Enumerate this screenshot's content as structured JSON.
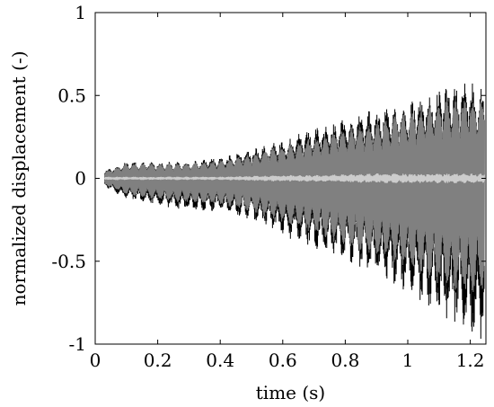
{
  "chart_data": {
    "type": "line",
    "title": "",
    "xlabel": "time (s)",
    "ylabel": "normalized displacement (-)",
    "xlim": [
      0,
      1.25
    ],
    "ylim": [
      -1,
      1
    ],
    "grid": false,
    "legend": "none",
    "x_ticks": [
      {
        "value": 0,
        "label": "0"
      },
      {
        "value": 0.2,
        "label": "0.2"
      },
      {
        "value": 0.4,
        "label": "0.4"
      },
      {
        "value": 0.6,
        "label": "0.6"
      },
      {
        "value": 0.8,
        "label": "0.8"
      },
      {
        "value": 1,
        "label": "1"
      },
      {
        "value": 1.2,
        "label": "1.2"
      }
    ],
    "y_ticks": [
      {
        "value": -1,
        "label": "-1"
      },
      {
        "value": -0.5,
        "label": "-0.5"
      },
      {
        "value": 0,
        "label": "0"
      },
      {
        "value": 0.5,
        "label": "0.5"
      },
      {
        "value": 1,
        "label": "1"
      }
    ],
    "series_colors": {
      "black_envelope": "#000000",
      "dark_gray_band": "#808080",
      "light_gray_band": "#cccccc"
    },
    "envelope_samples": {
      "x": [
        0.03,
        0.1,
        0.2,
        0.3,
        0.4,
        0.5,
        0.6,
        0.7,
        0.8,
        0.9,
        1.0,
        1.1,
        1.2,
        1.245
      ],
      "black_upper": [
        0.05,
        0.1,
        0.1,
        0.1,
        0.13,
        0.18,
        0.24,
        0.3,
        0.37,
        0.42,
        0.46,
        0.55,
        0.6,
        0.55
      ],
      "black_lower": [
        -0.05,
        -0.13,
        -0.17,
        -0.2,
        -0.2,
        -0.25,
        -0.35,
        -0.42,
        -0.5,
        -0.6,
        -0.7,
        -0.82,
        -0.95,
        -1.0
      ],
      "gray_upper": [
        0.04,
        0.09,
        0.09,
        0.09,
        0.11,
        0.15,
        0.2,
        0.25,
        0.3,
        0.35,
        0.4,
        0.47,
        0.5,
        0.48
      ],
      "gray_lower": [
        -0.04,
        -0.1,
        -0.13,
        -0.15,
        -0.16,
        -0.2,
        -0.27,
        -0.33,
        -0.42,
        -0.48,
        -0.55,
        -0.65,
        -0.72,
        -0.7
      ],
      "light_upper": [
        0.01,
        0.01,
        0.01,
        0.01,
        0.01,
        0.015,
        0.02,
        0.02,
        0.025,
        0.03,
        0.03,
        0.03,
        0.03,
        0.03
      ],
      "light_lower": [
        -0.01,
        -0.01,
        -0.01,
        -0.01,
        -0.01,
        -0.015,
        -0.02,
        -0.02,
        -0.025,
        -0.03,
        -0.03,
        -0.03,
        -0.03,
        -0.03
      ]
    }
  }
}
